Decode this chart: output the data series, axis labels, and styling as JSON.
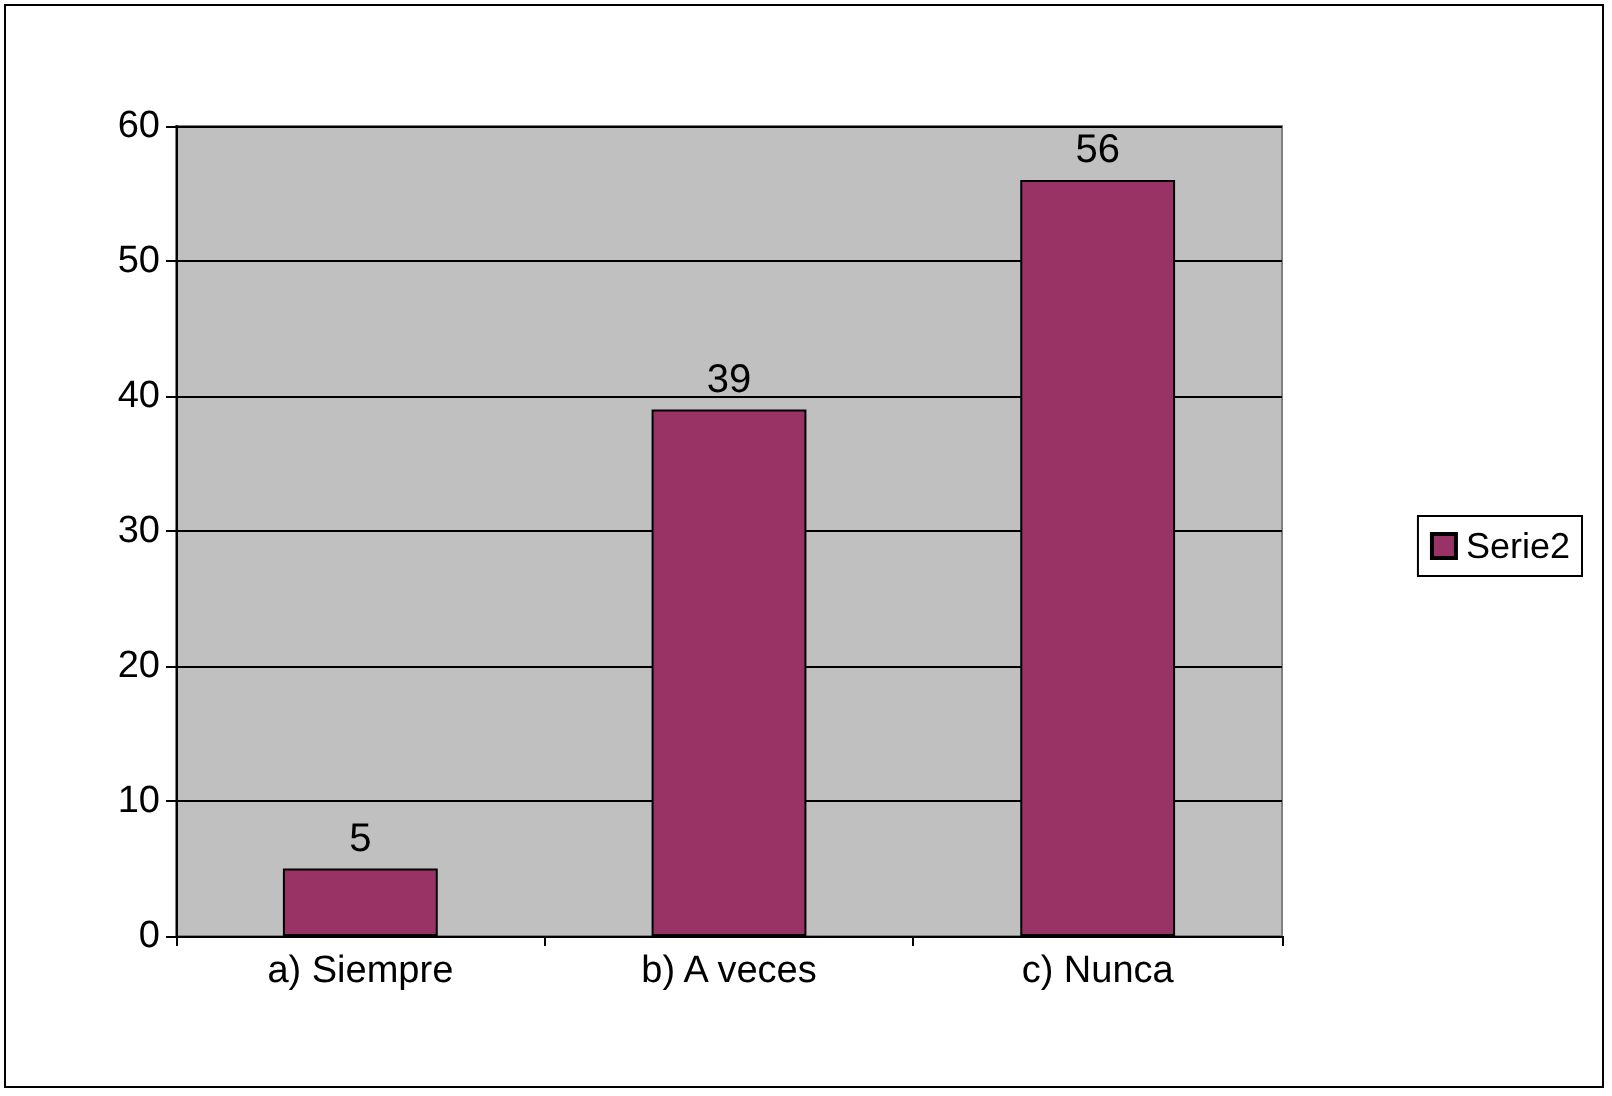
{
  "chart_data": {
    "type": "bar",
    "categories": [
      "a) Siempre",
      "b) A veces",
      "c) Nunca"
    ],
    "series": [
      {
        "name": "Serie2",
        "color": "#993366",
        "values": [
          5,
          39,
          56
        ]
      }
    ],
    "ylim": [
      0,
      60
    ],
    "yticks": [
      0,
      10,
      20,
      30,
      40,
      50,
      60
    ],
    "grid": "y",
    "legend": "right",
    "data_labels": true
  }
}
